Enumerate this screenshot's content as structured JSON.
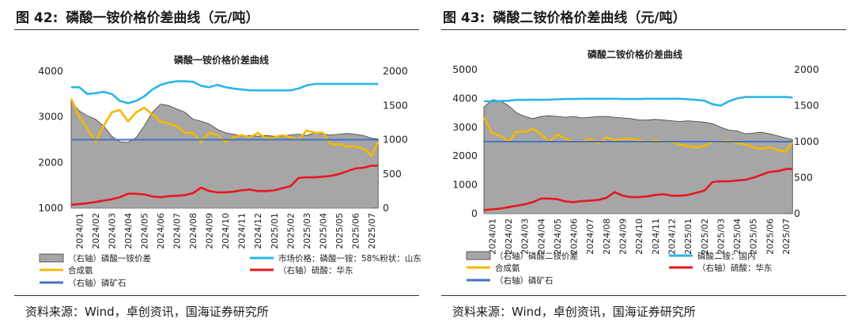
{
  "figures": [
    {
      "number": "图 42:",
      "title": "磷酸一铵价格价差曲线（元/吨）",
      "source": "资料来源：Wind，卓创资讯，国海证券研究所"
    },
    {
      "number": "图 43:",
      "title": "磷酸二铵价格价差曲线（元/吨）",
      "source": "资料来源：Wind，卓创资讯，国海证券研究所"
    }
  ],
  "colors": {
    "spread_area": "#a6a6a6",
    "spread_stroke": "#404040",
    "market": "#29b5e8",
    "ammonia": "#f5b800",
    "sulfuric": "#e8171f",
    "rock": "#4472c4"
  },
  "chart_data": [
    {
      "type": "line",
      "title": "磷酸一铵价格价差曲线",
      "x_labels": [
        "2024/01",
        "2024/02",
        "2024/03",
        "2024/04",
        "2024/05",
        "2024/06",
        "2024/07",
        "2024/08",
        "2024/09",
        "2024/10",
        "2024/11",
        "2024/12",
        "2025/01",
        "2025/02",
        "2025/03",
        "2025/04",
        "2025/05",
        "2025/06",
        "2025/07"
      ],
      "x": [
        0,
        0.5,
        1,
        1.5,
        2,
        2.5,
        3,
        3.5,
        4,
        4.5,
        5,
        5.5,
        6,
        6.5,
        7,
        7.5,
        8,
        8.5,
        9,
        9.5,
        10,
        10.5,
        11,
        11.5,
        12,
        12.5,
        13,
        13.5,
        14,
        14.5,
        15,
        15.5,
        16,
        16.5,
        17,
        17.5,
        18,
        18.5,
        18.9
      ],
      "left_axis": {
        "min": 1000,
        "max": 4000,
        "ticks": [
          1000,
          2000,
          3000,
          4000
        ]
      },
      "right_axis": {
        "min": 0,
        "max": 2000,
        "ticks": [
          0,
          500,
          1000,
          1500,
          2000
        ]
      },
      "series": [
        {
          "name": "（右轴）磷酸一铵价差",
          "axis": "right",
          "kind": "area",
          "values": [
            1560,
            1420,
            1350,
            1300,
            1200,
            1050,
            970,
            960,
            1030,
            1200,
            1400,
            1520,
            1500,
            1450,
            1400,
            1300,
            1270,
            1230,
            1150,
            1100,
            1080,
            1050,
            1060,
            1050,
            1060,
            1050,
            1050,
            1070,
            1080,
            1060,
            1100,
            1080,
            1070,
            1080,
            1090,
            1080,
            1060,
            1020,
            1010
          ]
        },
        {
          "name": "市场价格：磷酸一铵：58%粉状：山东",
          "axis": "left",
          "kind": "line",
          "values": [
            3650,
            3650,
            3500,
            3520,
            3550,
            3500,
            3350,
            3300,
            3350,
            3450,
            3600,
            3700,
            3750,
            3780,
            3780,
            3770,
            3680,
            3650,
            3700,
            3650,
            3620,
            3600,
            3580,
            3580,
            3580,
            3580,
            3580,
            3580,
            3620,
            3690,
            3720,
            3720,
            3720,
            3720,
            3720,
            3720,
            3720,
            3720,
            3720
          ]
        },
        {
          "name": "合成氨",
          "axis": "left",
          "kind": "line",
          "values": [
            3400,
            3000,
            2750,
            2450,
            2800,
            3100,
            3150,
            2900,
            3100,
            3200,
            3050,
            2900,
            2850,
            2800,
            2650,
            2650,
            2450,
            2650,
            2600,
            2450,
            2550,
            2600,
            2550,
            2650,
            2520,
            2550,
            2600,
            2550,
            2500,
            2700,
            2650,
            2650,
            2400,
            2400,
            2350,
            2350,
            2300,
            2150,
            2450
          ]
        },
        {
          "name": "（右轴）硫酸：华东",
          "axis": "right",
          "kind": "line",
          "values": [
            50,
            60,
            70,
            90,
            110,
            130,
            160,
            210,
            210,
            200,
            170,
            160,
            175,
            180,
            190,
            220,
            300,
            250,
            230,
            230,
            240,
            260,
            270,
            250,
            250,
            260,
            290,
            320,
            440,
            450,
            450,
            460,
            470,
            500,
            540,
            580,
            590,
            620,
            620
          ]
        },
        {
          "name": "（右轴）磷矿石",
          "axis": "right",
          "kind": "line",
          "values": [
            1000,
            1000,
            1000,
            1000,
            1000,
            1000,
            1000,
            1000,
            1000,
            1000,
            1000,
            1000,
            1000,
            1000,
            1000,
            1000,
            1000,
            1000,
            1000,
            1000,
            1000,
            1000,
            1000,
            1000,
            1000,
            1000,
            1000,
            1000,
            1000,
            1000,
            1000,
            1000,
            1000,
            1000,
            1000,
            1000,
            1000,
            1000,
            1000
          ]
        }
      ]
    },
    {
      "type": "line",
      "title": "磷酸二铵价格价差曲线",
      "x_labels": [
        "2024/01",
        "2024/02",
        "2024/03",
        "2024/04",
        "2024/05",
        "2024/06",
        "2024/07",
        "2024/08",
        "2024/09",
        "2024/10",
        "2024/11",
        "2024/12",
        "2025/01",
        "2025/02",
        "2025/03",
        "2025/04",
        "2025/05",
        "2025/06",
        "2025/07"
      ],
      "x": [
        0,
        0.5,
        1,
        1.5,
        2,
        2.5,
        3,
        3.5,
        4,
        4.5,
        5,
        5.5,
        6,
        6.5,
        7,
        7.5,
        8,
        8.5,
        9,
        9.5,
        10,
        10.5,
        11,
        11.5,
        12,
        12.5,
        13,
        13.5,
        14,
        14.5,
        15,
        15.5,
        16,
        16.5,
        17,
        17.5,
        18,
        18.5,
        18.9
      ],
      "left_axis": {
        "min": 0,
        "max": 5000,
        "ticks": [
          0,
          1000,
          2000,
          3000,
          4000,
          5000
        ]
      },
      "right_axis": {
        "min": 0,
        "max": 2000,
        "ticks": [
          0,
          500,
          1000,
          1500,
          2000
        ]
      },
      "series": [
        {
          "name": "（右轴）磷酸二铵价差",
          "axis": "right",
          "kind": "area",
          "values": [
            1480,
            1580,
            1570,
            1500,
            1400,
            1350,
            1320,
            1350,
            1360,
            1350,
            1340,
            1350,
            1330,
            1340,
            1350,
            1350,
            1340,
            1330,
            1320,
            1300,
            1300,
            1310,
            1300,
            1290,
            1280,
            1290,
            1280,
            1270,
            1250,
            1200,
            1160,
            1150,
            1110,
            1120,
            1130,
            1110,
            1080,
            1050,
            1030
          ]
        },
        {
          "name": "磷酸二铵：国内",
          "axis": "left",
          "kind": "line",
          "values": [
            3900,
            3900,
            3910,
            3920,
            3950,
            3950,
            3960,
            3950,
            3960,
            3970,
            3980,
            3980,
            3990,
            3990,
            3990,
            3990,
            3990,
            3980,
            3980,
            3980,
            3990,
            3990,
            3990,
            3990,
            3990,
            3970,
            3950,
            3920,
            3800,
            3750,
            3900,
            4000,
            4050,
            4050,
            4050,
            4050,
            4050,
            4050,
            4030
          ]
        },
        {
          "name": "合成氨",
          "axis": "left",
          "kind": "line",
          "values": [
            3350,
            2800,
            2700,
            2500,
            2850,
            2850,
            2950,
            2750,
            2500,
            2750,
            2600,
            2500,
            2500,
            2600,
            2450,
            2650,
            2550,
            2600,
            2600,
            2550,
            2500,
            2550,
            2500,
            2500,
            2400,
            2350,
            2300,
            2350,
            2500,
            2500,
            2550,
            2450,
            2400,
            2300,
            2250,
            2300,
            2200,
            2150,
            2500
          ]
        },
        {
          "name": "（右轴）硫酸：华东",
          "axis": "right",
          "kind": "line",
          "values": [
            50,
            60,
            70,
            90,
            110,
            130,
            160,
            210,
            210,
            200,
            170,
            160,
            175,
            180,
            190,
            220,
            300,
            250,
            230,
            230,
            240,
            260,
            270,
            250,
            250,
            260,
            290,
            320,
            440,
            450,
            450,
            460,
            470,
            500,
            540,
            580,
            590,
            620,
            620
          ]
        },
        {
          "name": "（右轴）磷矿石",
          "axis": "right",
          "kind": "line",
          "values": [
            1000,
            1000,
            1000,
            1000,
            1000,
            1000,
            1000,
            1000,
            1000,
            1000,
            1000,
            1000,
            1000,
            1000,
            1000,
            1000,
            1000,
            1000,
            1000,
            1000,
            1000,
            1000,
            1000,
            1000,
            1000,
            1000,
            1000,
            1000,
            1000,
            1000,
            1000,
            1000,
            1000,
            1000,
            1000,
            1000,
            1000,
            1000,
            1000
          ]
        }
      ]
    }
  ]
}
